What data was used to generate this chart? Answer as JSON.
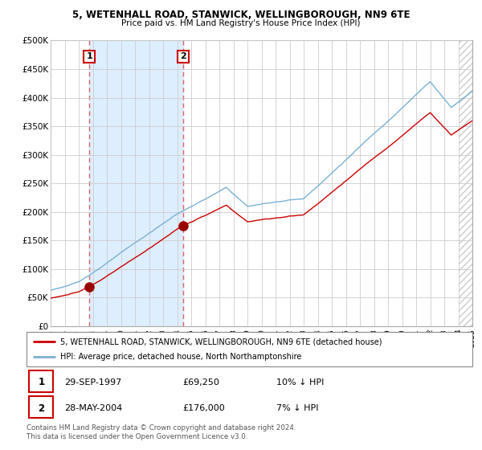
{
  "title1": "5, WETENHALL ROAD, STANWICK, WELLINGBOROUGH, NN9 6TE",
  "title2": "Price paid vs. HM Land Registry's House Price Index (HPI)",
  "legend_line1": "5, WETENHALL ROAD, STANWICK, WELLINGBOROUGH, NN9 6TE (detached house)",
  "legend_line2": "HPI: Average price, detached house, North Northamptonshire",
  "transaction1_label": "1",
  "transaction1_date": "29-SEP-1997",
  "transaction1_price": "£69,250",
  "transaction1_hpi": "10% ↓ HPI",
  "transaction2_label": "2",
  "transaction2_date": "28-MAY-2004",
  "transaction2_price": "£176,000",
  "transaction2_hpi": "7% ↓ HPI",
  "footer": "Contains HM Land Registry data © Crown copyright and database right 2024.\nThis data is licensed under the Open Government Licence v3.0.",
  "transaction1_x": 1997.75,
  "transaction2_x": 2004.42,
  "transaction1_y": 69250,
  "transaction2_y": 176000,
  "xmin": 1995,
  "xmax": 2025,
  "ymin": 0,
  "ymax": 500000,
  "yticks": [
    0,
    50000,
    100000,
    150000,
    200000,
    250000,
    300000,
    350000,
    400000,
    450000,
    500000
  ],
  "background_color": "#ffffff",
  "grid_color": "#cccccc",
  "hpi_line_color": "#7ab0d4",
  "price_line_color": "#cc0000",
  "vline_color": "#e06060",
  "marker_color": "#990000",
  "shade_color": "#ddeeff",
  "hatch_color": "#bbbbbb"
}
